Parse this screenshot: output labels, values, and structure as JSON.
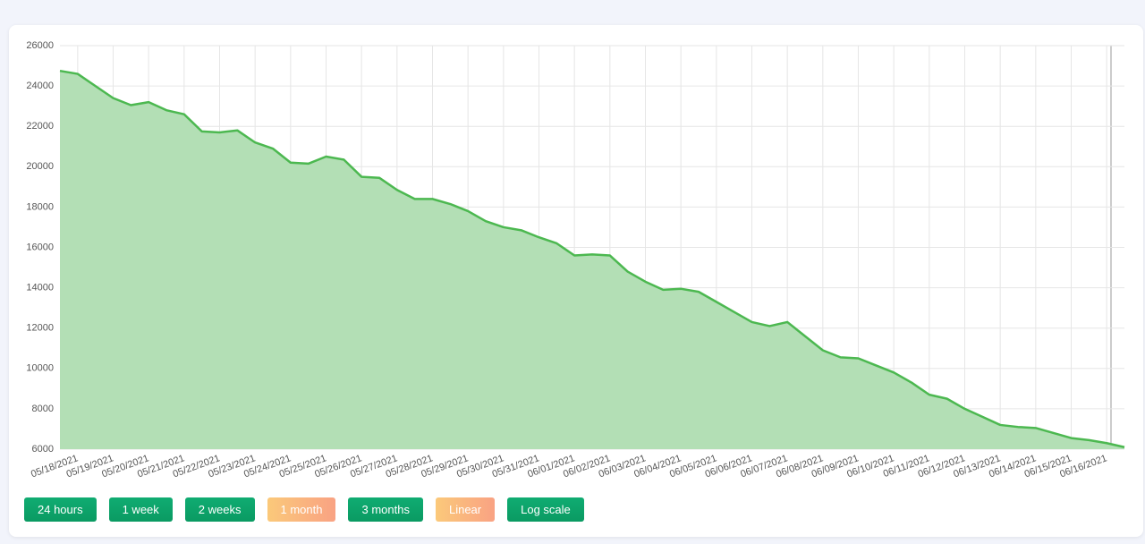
{
  "chart_data": {
    "type": "area",
    "categories": [
      null,
      "05/18/2021",
      null,
      "05/19/2021",
      null,
      "05/20/2021",
      null,
      "05/21/2021",
      null,
      "05/22/2021",
      null,
      "05/23/2021",
      null,
      "05/24/2021",
      null,
      "05/25/2021",
      null,
      "05/26/2021",
      null,
      "05/27/2021",
      null,
      "05/28/2021",
      null,
      "05/29/2021",
      null,
      "05/30/2021",
      null,
      "05/31/2021",
      null,
      "06/01/2021",
      null,
      "06/02/2021",
      null,
      "06/03/2021",
      null,
      "06/04/2021",
      null,
      "06/05/2021",
      null,
      "06/06/2021",
      null,
      "06/07/2021",
      null,
      "06/08/2021",
      null,
      "06/09/2021",
      null,
      "06/10/2021",
      null,
      "06/11/2021",
      null,
      "06/12/2021",
      null,
      "06/13/2021",
      null,
      "06/14/2021",
      null,
      "06/15/2021",
      null,
      "06/16/2021",
      null
    ],
    "values": [
      24750,
      24600,
      24000,
      23400,
      23050,
      23200,
      22800,
      22600,
      21750,
      21700,
      21800,
      21200,
      20900,
      20200,
      20150,
      20500,
      20350,
      19500,
      19450,
      18850,
      18400,
      18400,
      18150,
      17800,
      17300,
      17000,
      16850,
      16500,
      16200,
      15600,
      15650,
      15600,
      14800,
      14300,
      13900,
      13950,
      13800,
      13300,
      12800,
      12300,
      12100,
      12300,
      11600,
      10900,
      10550,
      10500,
      10150,
      9800,
      9300,
      8700,
      8500,
      8000,
      7600,
      7200,
      7100,
      7050,
      6800,
      6550,
      6450,
      6300,
      6100
    ],
    "color": "#4cb850",
    "fill": "#b3dfb5",
    "ylim": [
      6000,
      26000
    ],
    "yticks": [
      6000,
      8000,
      10000,
      12000,
      14000,
      16000,
      18000,
      20000,
      22000,
      24000,
      26000
    ],
    "grid": true
  },
  "buttons": [
    {
      "label": "24 hours",
      "active": false
    },
    {
      "label": "1 week",
      "active": false
    },
    {
      "label": "2 weeks",
      "active": false
    },
    {
      "label": "1 month",
      "active": true
    },
    {
      "label": "3 months",
      "active": false
    },
    {
      "label": "Linear",
      "active": true
    },
    {
      "label": "Log scale",
      "active": false
    }
  ]
}
